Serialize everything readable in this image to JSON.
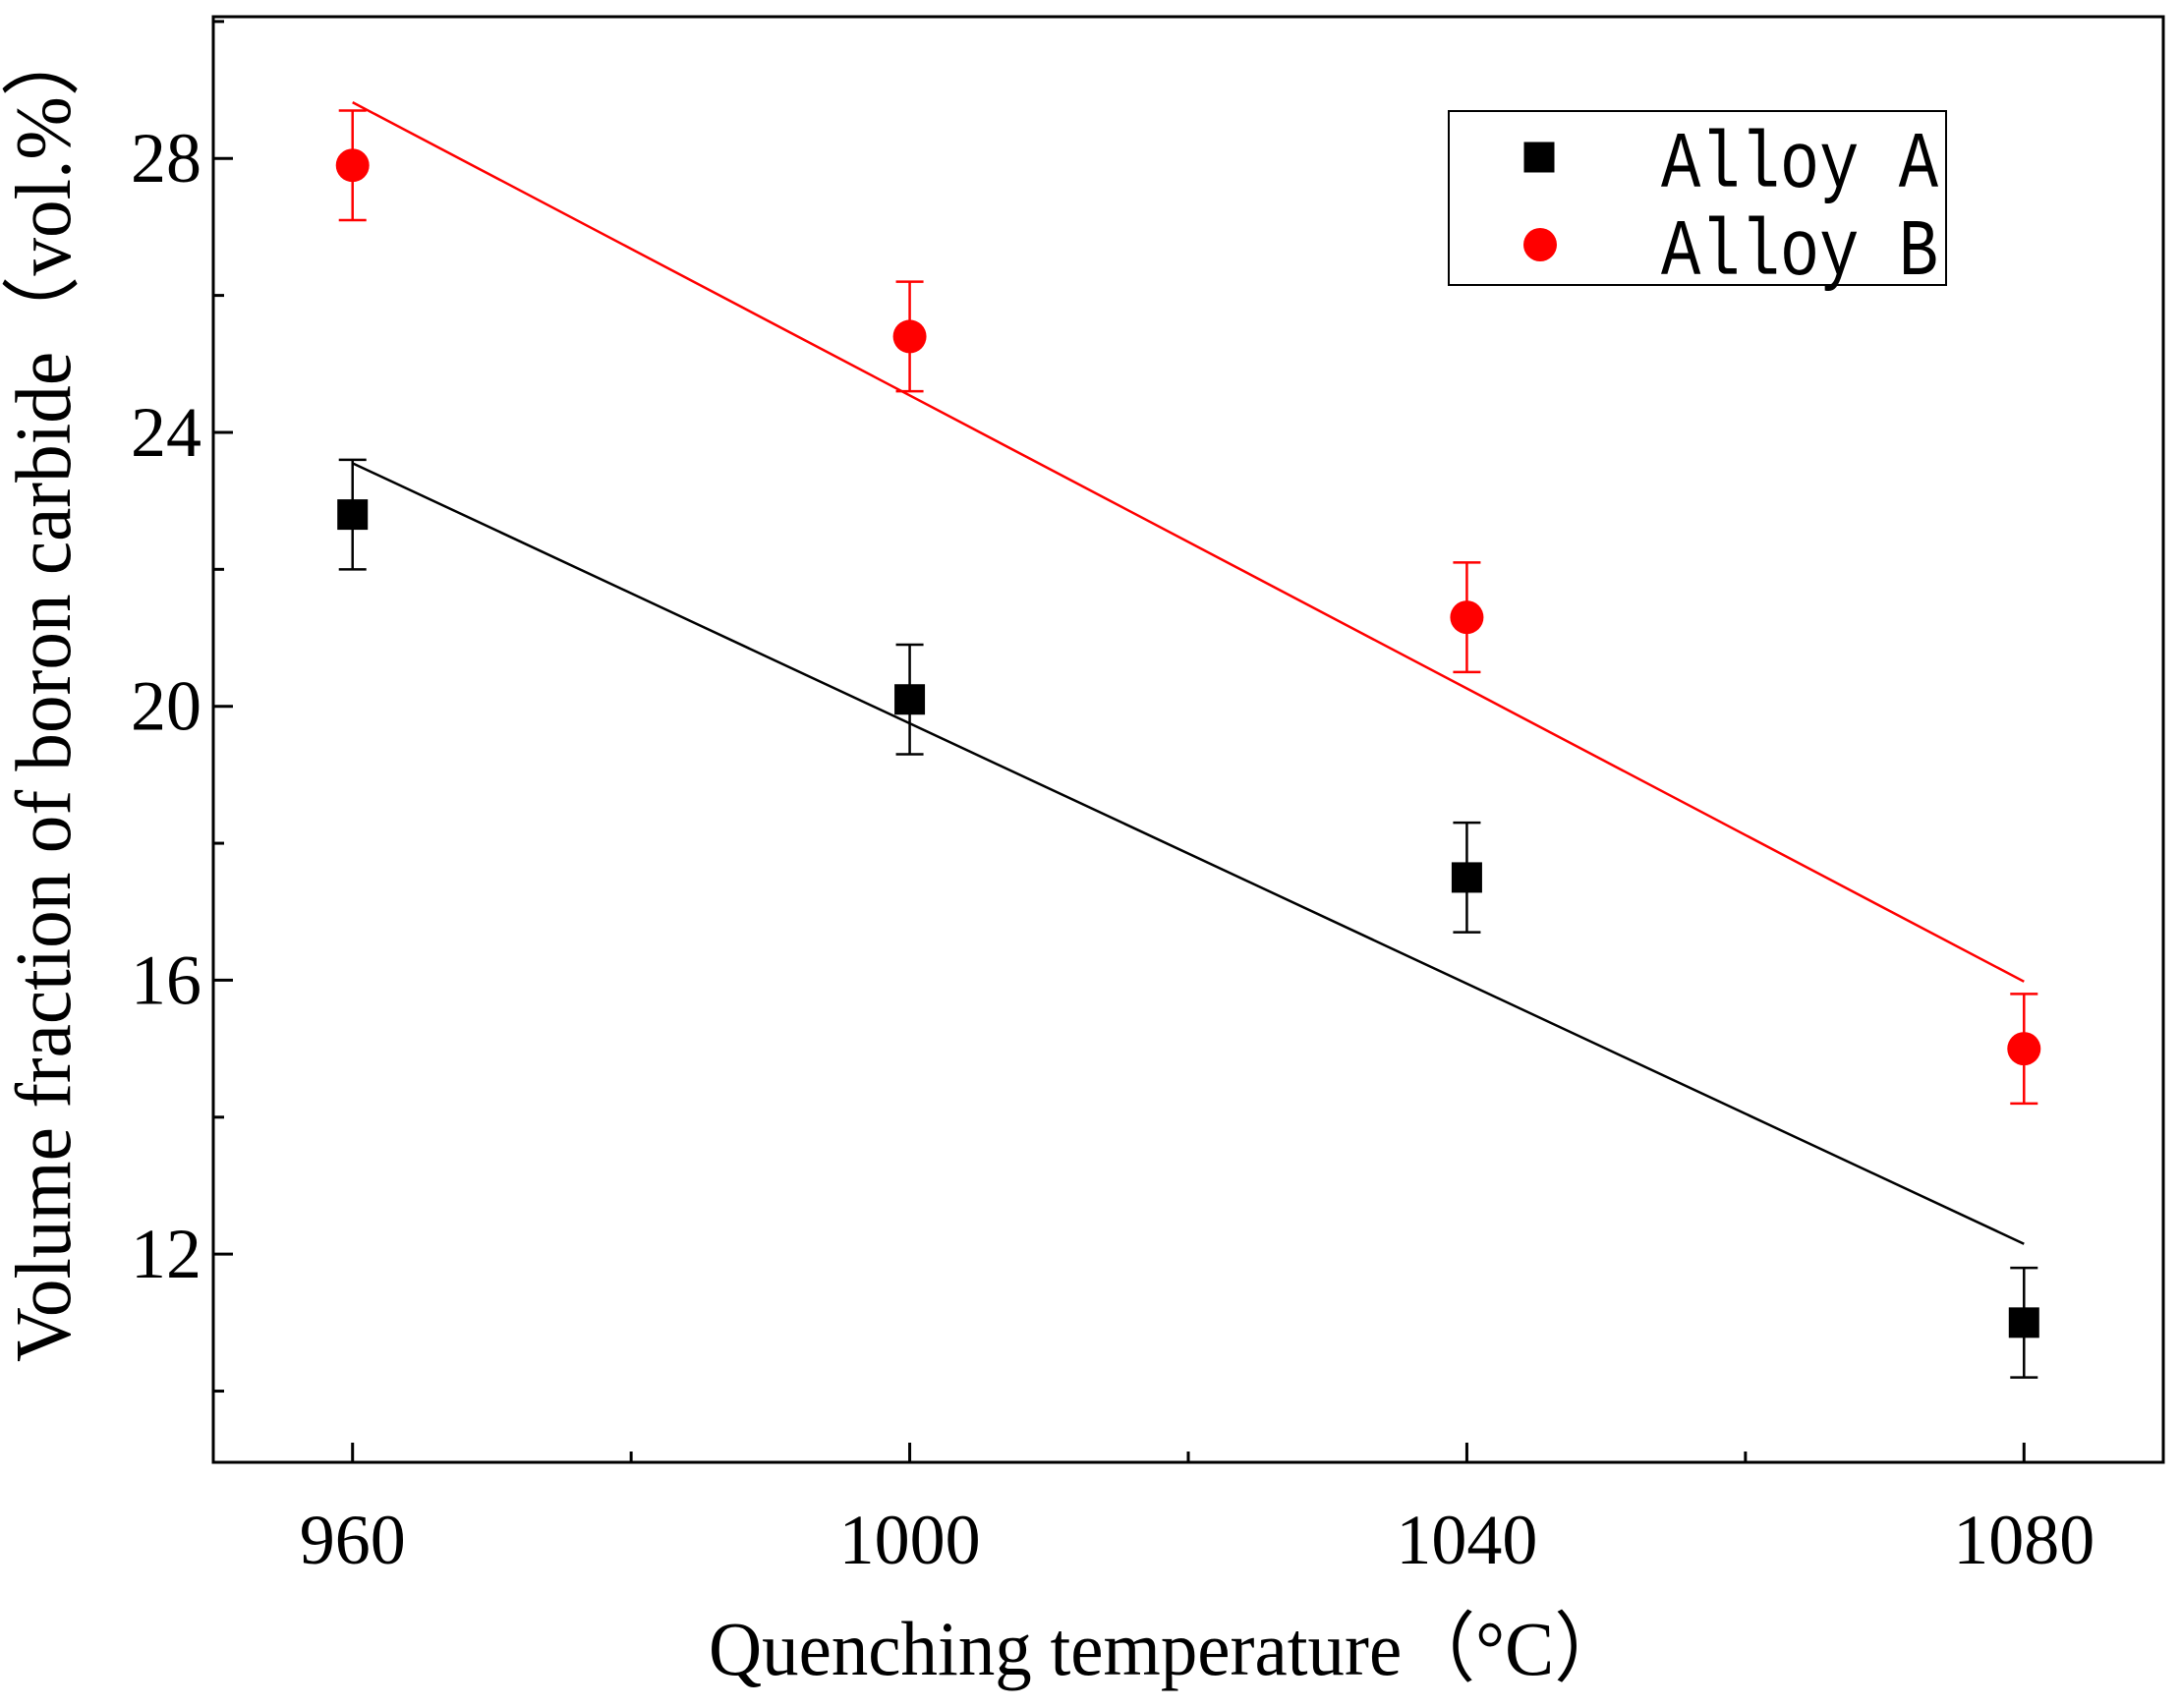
{
  "chart_data": {
    "type": "scatter",
    "xlabel": "Quenching temperature（°C）",
    "ylabel": "Volume fraction of boron carbide（vol.%）",
    "xlim": [
      950,
      1090
    ],
    "ylim": [
      8.96,
      30.07
    ],
    "xticks": [
      960,
      1000,
      1040,
      1080
    ],
    "xtick_labels": [
      "960",
      "1000",
      "1040",
      "1080"
    ],
    "xminor_ticks": [
      980,
      1020,
      1060
    ],
    "yticks": [
      12,
      16,
      20,
      24,
      28
    ],
    "ytick_labels": [
      "12",
      "16",
      "20",
      "24",
      "28"
    ],
    "yminor_ticks": [
      10,
      14,
      18,
      22,
      26,
      30
    ],
    "grid": false,
    "legend_position": "top-right",
    "x": [
      960,
      1000,
      1040,
      1080
    ],
    "series": [
      {
        "name": "Alloy A",
        "marker": "square",
        "color": "#000000",
        "values": [
          22.8,
          20.1,
          17.5,
          11.0
        ],
        "error": [
          0.8,
          0.8,
          0.8,
          0.8
        ],
        "fit_line": {
          "x": [
            960,
            1080
          ],
          "y": [
            23.55,
            12.15
          ]
        }
      },
      {
        "name": "Alloy B",
        "marker": "circle",
        "color": "#ff0000",
        "values": [
          27.9,
          25.4,
          21.3,
          15.0
        ],
        "error": [
          0.8,
          0.8,
          0.8,
          0.8
        ],
        "fit_line": {
          "x": [
            960,
            1080
          ],
          "y": [
            28.82,
            15.98
          ]
        }
      }
    ]
  }
}
